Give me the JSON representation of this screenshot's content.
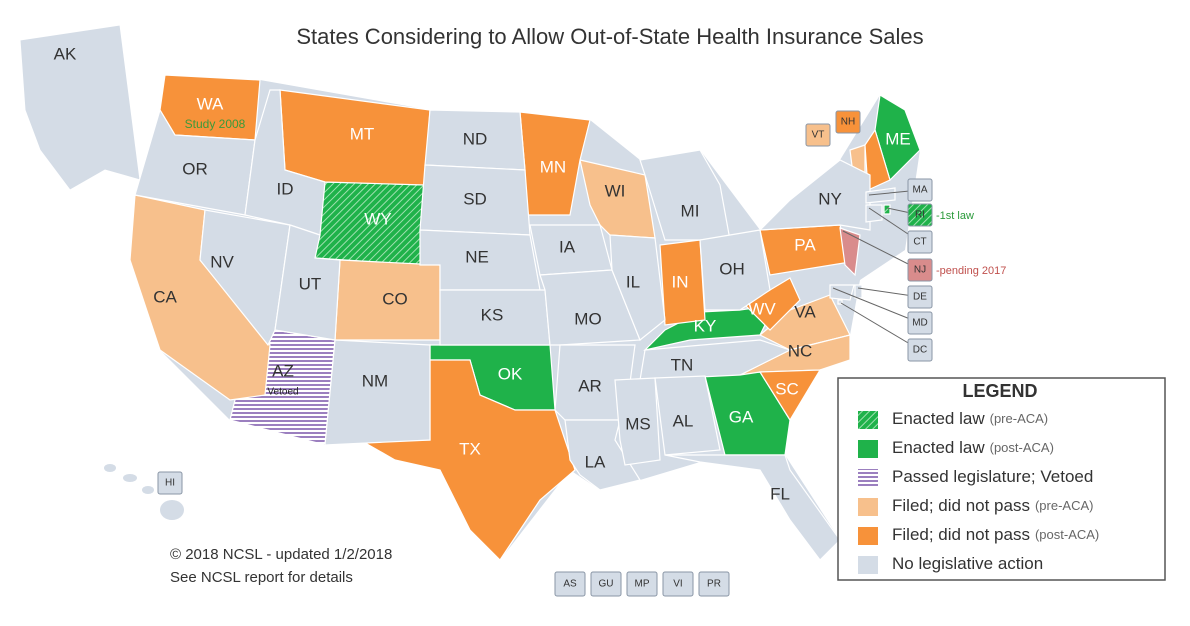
{
  "title": "States Considering to Allow Out-of-State Health Insurance Sales",
  "legend": {
    "title": "LEGEND",
    "items": [
      {
        "label": "Enacted law",
        "note": "(pre-ACA)",
        "color": "#5cc97a",
        "hatched": true,
        "states": [
          "WY",
          "RI"
        ]
      },
      {
        "label": "Enacted law",
        "note": "(post-ACA)",
        "color": "#1fb24a",
        "states": [
          "ME",
          "KY",
          "OK",
          "GA"
        ]
      },
      {
        "label": "Passed legislature; Vetoed",
        "color": "#a58fc4",
        "hatched": true,
        "states": [
          "AZ"
        ]
      },
      {
        "label": "Filed; did not pass",
        "note": "(pre-ACA)",
        "color": "#f7c08c",
        "states": [
          "CA",
          "CO",
          "WI",
          "VT",
          "VA",
          "NC"
        ]
      },
      {
        "label": "Filed; did not pass",
        "note": "(post-ACA)",
        "color": "#f7923a",
        "states": [
          "WA",
          "MT",
          "MN",
          "IN",
          "TX",
          "PA",
          "WV",
          "SC",
          "NH"
        ]
      },
      {
        "label": "No legislative action",
        "color": "#d4dce6",
        "states": [
          "AK",
          "HI",
          "OR",
          "NV",
          "ID",
          "UT",
          "NM",
          "ND",
          "SD",
          "NE",
          "KS",
          "IA",
          "MO",
          "AR",
          "LA",
          "IL",
          "MI",
          "OH",
          "TN",
          "MS",
          "AL",
          "FL",
          "NY",
          "MA",
          "CT",
          "DE",
          "MD",
          "DC"
        ]
      }
    ]
  },
  "pending": {
    "color": "#d98c8c",
    "states": [
      "NJ"
    ]
  },
  "annotations": {
    "WA": "Study 2008",
    "AZ": "Vetoed",
    "RI": "-1st law",
    "NJ": "-pending 2017"
  },
  "territories": [
    "AS",
    "GU",
    "MP",
    "VI",
    "PR"
  ],
  "footer": [
    "© 2018 NCSL - updated 1/2/2018",
    "See NCSL report for details"
  ]
}
